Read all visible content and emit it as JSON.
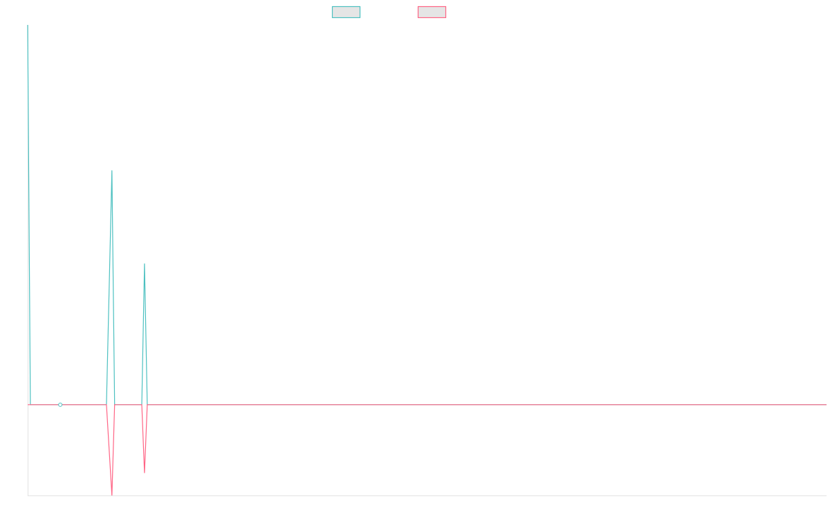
{
  "chart_data": {
    "type": "line",
    "title": "",
    "xlabel": "",
    "ylabel": "",
    "legend": {
      "placement": "top",
      "entries": [
        {
          "color": "#4bc0c0"
        },
        {
          "color": "#ff6384"
        }
      ]
    },
    "xlim": [
      0,
      294
    ],
    "ylim": [
      -23.9,
      100
    ],
    "grid": false,
    "series": [
      {
        "color": "#4bc0c0",
        "points": [
          [
            0,
            100
          ],
          [
            1,
            0
          ],
          [
            29,
            0
          ],
          [
            31,
            61.7
          ],
          [
            32,
            0
          ],
          [
            42,
            0
          ],
          [
            43,
            37.2
          ],
          [
            44,
            0
          ],
          [
            294,
            0
          ]
        ]
      },
      {
        "color": "#ff6384",
        "points": [
          [
            0,
            0
          ],
          [
            29,
            0
          ],
          [
            31,
            -23.9
          ],
          [
            32,
            0
          ],
          [
            42,
            0
          ],
          [
            43,
            -18
          ],
          [
            44,
            0
          ],
          [
            294,
            0
          ]
        ]
      }
    ],
    "marked_point": [
      12,
      0
    ]
  }
}
